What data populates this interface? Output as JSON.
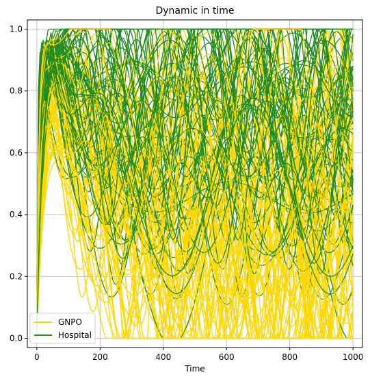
{
  "chart_data": {
    "type": "line",
    "title": "Dynamic in time",
    "xlabel": "Time",
    "ylabel": "",
    "xlim": [
      -30,
      1030
    ],
    "ylim": [
      -0.03,
      1.03
    ],
    "xticks": [
      0,
      200,
      400,
      600,
      800,
      1000
    ],
    "yticks": [
      0.0,
      0.2,
      0.4,
      0.6,
      0.8,
      1.0
    ],
    "ytick_labels": [
      "0.0",
      "0.2",
      "0.4",
      "0.6",
      "0.8",
      "1.0"
    ],
    "grid": true,
    "legend_position": "lower-left",
    "series": [
      {
        "name": "GNPO",
        "color": "#FFD700",
        "description_note": "",
        "x": [
          0,
          50,
          100,
          150,
          200,
          250,
          300,
          350,
          400,
          450,
          500,
          550,
          600,
          650,
          700,
          750,
          800,
          850,
          900,
          950,
          1000
        ],
        "values": [
          0.05,
          0.75,
          0.95,
          0.85,
          0.55,
          0.3,
          0.15,
          0.25,
          0.45,
          0.6,
          0.55,
          0.4,
          0.3,
          0.45,
          0.65,
          0.75,
          0.6,
          0.45,
          0.55,
          0.8,
          0.9
        ]
      },
      {
        "name": "Hospital",
        "color": "#228B22",
        "x": [
          0,
          50,
          100,
          150,
          200,
          250,
          300,
          350,
          400,
          450,
          500,
          550,
          600,
          650,
          700,
          750,
          800,
          850,
          900,
          950,
          1000
        ],
        "values": [
          0.02,
          0.9,
          0.99,
          0.98,
          0.85,
          0.65,
          0.5,
          0.35,
          0.55,
          0.75,
          0.6,
          0.4,
          0.5,
          0.7,
          0.85,
          0.7,
          0.5,
          0.6,
          0.8,
          0.95,
          0.9
        ]
      }
    ]
  }
}
